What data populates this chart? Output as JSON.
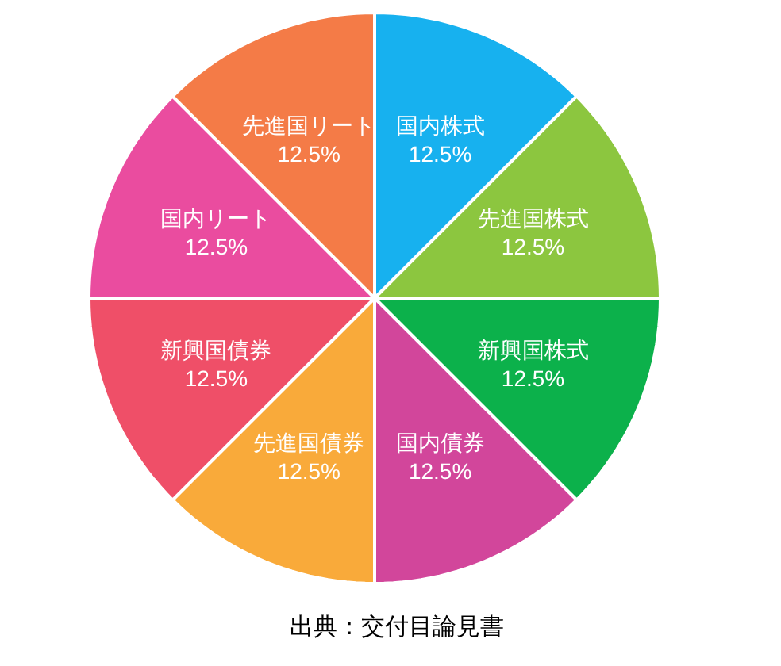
{
  "chart_data": {
    "type": "pie",
    "categories": [
      "国内株式",
      "先進国株式",
      "新興国株式",
      "国内債券",
      "先進国債券",
      "新興国債券",
      "国内リート",
      "先進国リート"
    ],
    "values": [
      12.5,
      12.5,
      12.5,
      12.5,
      12.5,
      12.5,
      12.5,
      12.5
    ],
    "colors": [
      "#17b1ef",
      "#8cc63f",
      "#0cb14b",
      "#d2469b",
      "#f9aa3a",
      "#ef4f68",
      "#ea4c9f",
      "#f47b47"
    ],
    "value_labels": [
      "12.5%",
      "12.5%",
      "12.5%",
      "12.5%",
      "12.5%",
      "12.5%",
      "12.5%",
      "12.5%"
    ],
    "legend": false,
    "annotations": [
      "出典：交付目論見書"
    ]
  }
}
